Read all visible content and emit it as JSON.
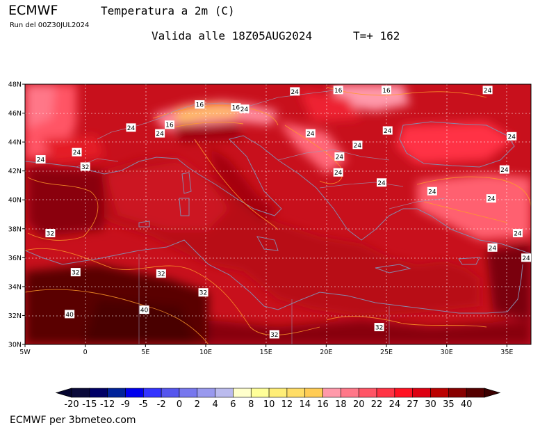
{
  "header": {
    "model": "ECMWF",
    "product_title": "Temperatura a 2m (C)",
    "run": "Run del 00Z30JUL2024",
    "valid": "Valida alle 18Z05AUG2024",
    "lead": "T=+ 162"
  },
  "footer": {
    "credit": "ECMWF per 3bmeteo.com"
  },
  "map": {
    "lon_range": [
      -5,
      37
    ],
    "lat_range": [
      30,
      48
    ],
    "lon_ticks": [
      {
        "lon": -5,
        "label": "5W"
      },
      {
        "lon": 0,
        "label": "0"
      },
      {
        "lon": 5,
        "label": "5E"
      },
      {
        "lon": 10,
        "label": "10E"
      },
      {
        "lon": 15,
        "label": "15E"
      },
      {
        "lon": 20,
        "label": "20E"
      },
      {
        "lon": 25,
        "label": "25E"
      },
      {
        "lon": 30,
        "label": "30E"
      },
      {
        "lon": 35,
        "label": "35E"
      }
    ],
    "lat_ticks": [
      {
        "lat": 30,
        "label": "30N"
      },
      {
        "lat": 32,
        "label": "32N"
      },
      {
        "lat": 34,
        "label": "34N"
      },
      {
        "lat": 36,
        "label": "36N"
      },
      {
        "lat": 38,
        "label": "38N"
      },
      {
        "lat": 40,
        "label": "40N"
      },
      {
        "lat": 42,
        "label": "42N"
      },
      {
        "lat": 44,
        "label": "44N"
      },
      {
        "lat": 46,
        "label": "46N"
      },
      {
        "lat": 48,
        "label": "48N"
      }
    ],
    "contour_labels": [
      {
        "lon": 17.4,
        "lat": 47.5,
        "value": "24"
      },
      {
        "lon": 21.0,
        "lat": 47.6,
        "value": "16"
      },
      {
        "lon": 25.0,
        "lat": 47.6,
        "value": "16"
      },
      {
        "lon": 33.4,
        "lat": 47.6,
        "value": "24"
      },
      {
        "lon": 9.5,
        "lat": 46.6,
        "value": "16"
      },
      {
        "lon": 12.5,
        "lat": 46.4,
        "value": "16"
      },
      {
        "lon": 13.2,
        "lat": 46.3,
        "value": "24"
      },
      {
        "lon": 3.8,
        "lat": 45.0,
        "value": "24"
      },
      {
        "lon": 7.0,
        "lat": 45.2,
        "value": "16"
      },
      {
        "lon": 6.2,
        "lat": 44.6,
        "value": "24"
      },
      {
        "lon": 18.7,
        "lat": 44.6,
        "value": "24"
      },
      {
        "lon": 25.1,
        "lat": 44.8,
        "value": "24"
      },
      {
        "lon": 35.4,
        "lat": 44.4,
        "value": "24"
      },
      {
        "lon": 22.6,
        "lat": 43.8,
        "value": "24"
      },
      {
        "lon": -0.7,
        "lat": 43.3,
        "value": "24"
      },
      {
        "lon": -3.7,
        "lat": 42.8,
        "value": "24"
      },
      {
        "lon": 0.0,
        "lat": 42.3,
        "value": "32"
      },
      {
        "lon": 21.1,
        "lat": 43.0,
        "value": "24"
      },
      {
        "lon": 21.0,
        "lat": 41.9,
        "value": "24"
      },
      {
        "lon": 34.8,
        "lat": 42.1,
        "value": "24"
      },
      {
        "lon": 24.6,
        "lat": 41.2,
        "value": "24"
      },
      {
        "lon": 28.8,
        "lat": 40.6,
        "value": "24"
      },
      {
        "lon": 33.7,
        "lat": 40.1,
        "value": "24"
      },
      {
        "lon": -2.9,
        "lat": 37.7,
        "value": "32"
      },
      {
        "lon": 35.9,
        "lat": 37.7,
        "value": "24"
      },
      {
        "lon": 33.8,
        "lat": 36.7,
        "value": "24"
      },
      {
        "lon": 36.6,
        "lat": 36.0,
        "value": "24"
      },
      {
        "lon": -0.8,
        "lat": 35.0,
        "value": "32"
      },
      {
        "lon": 6.3,
        "lat": 34.9,
        "value": "32"
      },
      {
        "lon": 9.8,
        "lat": 33.6,
        "value": "32"
      },
      {
        "lon": -1.3,
        "lat": 32.1,
        "value": "40"
      },
      {
        "lon": 4.9,
        "lat": 32.4,
        "value": "40"
      },
      {
        "lon": 24.4,
        "lat": 31.2,
        "value": "32"
      },
      {
        "lon": 15.7,
        "lat": 30.7,
        "value": "32"
      }
    ]
  },
  "colorbar": {
    "labels": [
      "-20",
      "-15",
      "-12",
      "-9",
      "-5",
      "-2",
      "0",
      "2",
      "4",
      "6",
      "8",
      "10",
      "12",
      "14",
      "16",
      "18",
      "20",
      "22",
      "24",
      "27",
      "30",
      "35",
      "40"
    ],
    "colors": [
      "#0a0a3a",
      "#000066",
      "#002299",
      "#0000ee",
      "#3333ff",
      "#5555ee",
      "#7777ee",
      "#9999ee",
      "#bbbbee",
      "#ffffcc",
      "#ffff99",
      "#ffee77",
      "#ffdd66",
      "#ffcc55",
      "#ff99aa",
      "#ff7788",
      "#ff5566",
      "#ff3344",
      "#ff1122",
      "#dd0011",
      "#bb0000",
      "#880000",
      "#550000"
    ]
  }
}
